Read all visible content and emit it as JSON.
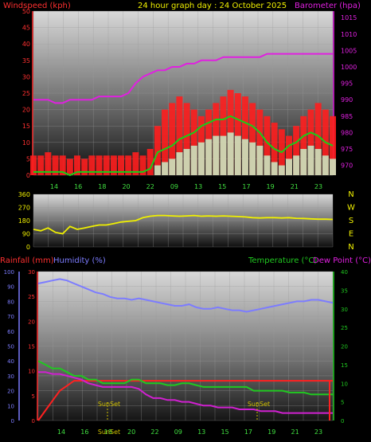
{
  "header": {
    "left_label": "Windspeed (kph)",
    "title": "24 hour graph day : 24 October 2025",
    "right_label": "Barometer (hpa)"
  },
  "colors": {
    "wind": "#ff1e1e",
    "wind_avg": "#17d017",
    "gust": "#c8f0c8",
    "barometer": "#e020e0",
    "direction": "#f0f000",
    "rain": "#ff2020",
    "humidity": "#7c7cff",
    "temperature": "#20c820",
    "dewpoint": "#d020d0",
    "header_left": "#ff3030",
    "header_title": "#f0f000",
    "header_right": "#e020e0"
  },
  "panel3_header": {
    "rain_label": "Rainfall (mm)",
    "humidity_label": "Humidity (%)",
    "temp_label": "Temperature (°C)",
    "dew_label": "Dew Point (°C)"
  },
  "compass": [
    "N",
    "W",
    "S",
    "E",
    "N"
  ],
  "chart_data": [
    {
      "type": "line",
      "name": "wind_barometer",
      "x_ticks": [
        "14",
        "16",
        "18",
        "20",
        "22",
        "09",
        "13",
        "15",
        "17",
        "19",
        "21",
        "23"
      ],
      "y_left_ticks": [
        "0",
        "5",
        "10",
        "15",
        "20",
        "25",
        "30",
        "35",
        "40",
        "45",
        "50"
      ],
      "y_right_ticks": [
        "970",
        "975",
        "980",
        "985",
        "990",
        "995",
        "1000",
        "1005",
        "1010",
        "1015"
      ],
      "ylim_left": [
        0,
        50
      ],
      "ylim_right": [
        967,
        1017
      ],
      "grid": true,
      "series": [
        {
          "name": "Windspeed (kph)",
          "axis": "left",
          "values": [
            6,
            6,
            7,
            6,
            6,
            5,
            6,
            5,
            6,
            6,
            6,
            6,
            6,
            6,
            7,
            6,
            8,
            15,
            20,
            22,
            24,
            22,
            20,
            18,
            20,
            22,
            24,
            26,
            25,
            24,
            22,
            20,
            18,
            16,
            14,
            12,
            15,
            18,
            20,
            22,
            20,
            18
          ]
        },
        {
          "name": "Wind average",
          "axis": "left",
          "values": [
            1,
            1,
            1,
            1,
            1,
            0,
            1,
            1,
            1,
            1,
            1,
            1,
            1,
            1,
            1,
            1,
            2,
            7,
            8,
            9,
            11,
            12,
            13,
            15,
            16,
            17,
            17,
            18,
            17,
            16,
            15,
            13,
            10,
            8,
            7,
            9,
            10,
            12,
            13,
            12,
            10,
            9
          ]
        },
        {
          "name": "Gust",
          "axis": "left",
          "values": [
            0,
            0,
            0,
            0,
            0,
            0,
            0,
            0,
            0,
            0,
            0,
            0,
            0,
            0,
            0,
            0,
            0,
            3,
            4,
            5,
            7,
            8,
            9,
            10,
            11,
            12,
            12,
            13,
            12,
            11,
            10,
            9,
            6,
            4,
            3,
            5,
            6,
            8,
            9,
            8,
            6,
            5
          ]
        },
        {
          "name": "Barometer (hpa)",
          "axis": "right",
          "values": [
            990,
            990,
            990,
            989,
            989,
            990,
            990,
            990,
            990,
            991,
            991,
            991,
            991,
            992,
            995,
            997,
            998,
            999,
            999,
            1000,
            1000,
            1001,
            1001,
            1002,
            1002,
            1002,
            1003,
            1003,
            1003,
            1003,
            1003,
            1003,
            1004,
            1004,
            1004,
            1004,
            1004,
            1004,
            1004,
            1004,
            1004,
            1004
          ]
        }
      ]
    },
    {
      "type": "line",
      "name": "wind_direction",
      "y_ticks": [
        "0",
        "90",
        "180",
        "270",
        "360"
      ],
      "ylim": [
        0,
        360
      ],
      "grid": true,
      "series": [
        {
          "name": "Wind direction",
          "values": [
            120,
            110,
            130,
            100,
            90,
            140,
            120,
            130,
            140,
            150,
            150,
            160,
            170,
            175,
            180,
            200,
            210,
            215,
            215,
            212,
            210,
            212,
            215,
            210,
            212,
            210,
            212,
            210,
            208,
            205,
            200,
            198,
            200,
            200,
            198,
            200,
            196,
            195,
            192,
            190,
            190,
            188
          ]
        }
      ]
    },
    {
      "type": "line",
      "name": "rain_humidity_temp",
      "x_ticks": [
        "14",
        "16",
        "18",
        "20",
        "22",
        "09",
        "13",
        "15",
        "17",
        "19",
        "21",
        "23"
      ],
      "y_left_rain_ticks": [
        "0",
        "5",
        "10",
        "15",
        "20",
        "25",
        "30"
      ],
      "y_left_humidity_ticks": [
        "0",
        "10",
        "20",
        "30",
        "40",
        "50",
        "60",
        "70",
        "80",
        "90",
        "100"
      ],
      "y_right_ticks": [
        "0",
        "5",
        "10",
        "15",
        "20",
        "25",
        "30",
        "35",
        "40"
      ],
      "ylim_rain": [
        0,
        30
      ],
      "ylim_humidity": [
        0,
        100
      ],
      "ylim_temp": [
        0,
        40
      ],
      "annotations": [
        {
          "label": "SunSet",
          "x": "17.5"
        },
        {
          "label": "SunSet",
          "x": "17.5"
        }
      ],
      "bottom_label": "SunSet",
      "grid": true,
      "series": [
        {
          "name": "Rainfall (mm)",
          "axis": "rain",
          "values": [
            0,
            2,
            4,
            6,
            7,
            8,
            8,
            8,
            8,
            8,
            8,
            8,
            8,
            8,
            8,
            8,
            8,
            8,
            8,
            8,
            8,
            8,
            8,
            8,
            8,
            8,
            8,
            8,
            8,
            8,
            8,
            8,
            8,
            8,
            8,
            8,
            8,
            8,
            8,
            8,
            8,
            8
          ]
        },
        {
          "name": "Humidity (%)",
          "axis": "humidity",
          "values": [
            92,
            93,
            94,
            95,
            94,
            92,
            90,
            88,
            86,
            85,
            83,
            82,
            82,
            81,
            82,
            81,
            80,
            79,
            78,
            77,
            77,
            78,
            76,
            75,
            75,
            76,
            75,
            74,
            74,
            73,
            74,
            75,
            76,
            77,
            78,
            79,
            80,
            80,
            81,
            81,
            80,
            79
          ]
        },
        {
          "name": "Temperature (°C)",
          "axis": "temp",
          "values": [
            16,
            15,
            14,
            14,
            13,
            12,
            12,
            11,
            11,
            10,
            10,
            10,
            10,
            11,
            11,
            10,
            10,
            10,
            9.5,
            9.5,
            10,
            10,
            9.5,
            9,
            9,
            9,
            9,
            9,
            9,
            9,
            8,
            8,
            8,
            8,
            8,
            7.5,
            7.5,
            7.5,
            7,
            7,
            7,
            7
          ]
        },
        {
          "name": "Dew Point (°C)",
          "axis": "temp",
          "values": [
            13,
            13,
            12.5,
            12.5,
            12,
            11.5,
            11,
            10,
            9.5,
            9,
            9,
            9,
            9,
            9,
            8.5,
            7,
            6,
            6,
            5.5,
            5.5,
            5,
            5,
            4.5,
            4,
            4,
            3.5,
            3.5,
            3.5,
            3,
            3,
            3,
            2.5,
            2.5,
            2.5,
            2,
            2,
            2,
            2,
            2,
            2,
            2,
            2
          ]
        }
      ]
    }
  ]
}
